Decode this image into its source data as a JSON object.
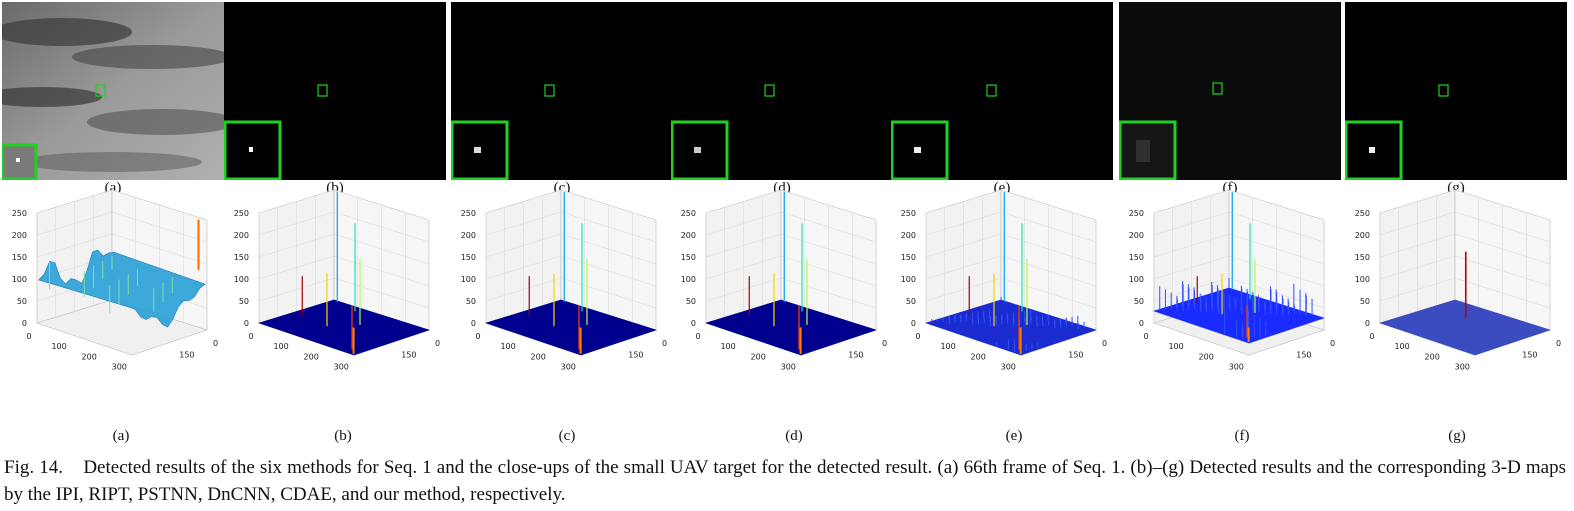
{
  "panels": [
    {
      "label": "(a)",
      "kind": "original"
    },
    {
      "label": "(b)",
      "kind": "result"
    },
    {
      "label": "(c)",
      "kind": "result"
    },
    {
      "label": "(d)",
      "kind": "result"
    },
    {
      "label": "(e)",
      "kind": "result"
    },
    {
      "label": "(f)",
      "kind": "noisy"
    },
    {
      "label": "(g)",
      "kind": "result"
    }
  ],
  "plots": [
    {
      "label": "(a)",
      "surface": "clutter",
      "peak": 250
    },
    {
      "label": "(b)",
      "surface": "flat",
      "peak": 250
    },
    {
      "label": "(c)",
      "surface": "flat",
      "peak": 250
    },
    {
      "label": "(d)",
      "surface": "flat",
      "peak": 250
    },
    {
      "label": "(e)",
      "surface": "rough",
      "peak": 250
    },
    {
      "label": "(f)",
      "surface": "noisy",
      "peak": 250
    },
    {
      "label": "(g)",
      "surface": "clean",
      "peak": 150
    }
  ],
  "axes": {
    "z_ticks": [
      "0",
      "50",
      "100",
      "150",
      "200",
      "250"
    ],
    "x_ticks": [
      "0",
      "100",
      "200",
      "300"
    ],
    "y_ticks": [
      "150",
      "0"
    ],
    "f_x_ticks": [
      "0",
      "100",
      "200",
      "300"
    ],
    "f_y_ticks": [
      "150",
      "0"
    ]
  },
  "colors": {
    "highlight_box": "#1fd21f",
    "surface_flat": "#00008f",
    "surface_clutter": "#2aa0d8"
  },
  "caption": {
    "fig": "Fig. 14.",
    "text": "Detected results of the six methods for Seq. 1 and the close-ups of the small UAV target for the detected result. (a) 66th frame of Seq. 1. (b)–(g) Detected results and the corresponding 3-D maps by the IPI, RIPT, PSTNN, DnCNN, CDAE, and our method, respectively."
  }
}
